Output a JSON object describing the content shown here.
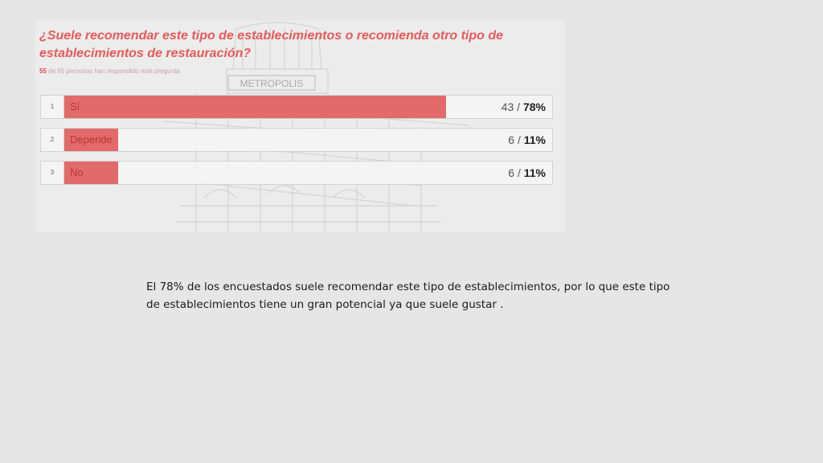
{
  "survey": {
    "question": "¿Suele recomendar este tipo de establecimientos o recomienda otro tipo de establecimientos de restauración?",
    "respondent_count": "55",
    "respondent_text": "de 55 personas han respondido esta pregunta",
    "sign_text": "METROPOLIS"
  },
  "chart_data": {
    "type": "bar",
    "orientation": "horizontal",
    "title": "¿Suele recomendar este tipo de establecimientos o recomienda otro tipo de establecimientos de restauración?",
    "categories": [
      "Sí",
      "Depende",
      "No"
    ],
    "indices": [
      "1",
      "2",
      "3"
    ],
    "counts": [
      43,
      6,
      6
    ],
    "percentages": [
      78,
      11,
      11
    ],
    "count_labels": [
      "43 / ",
      "6 / ",
      "6 / "
    ],
    "percent_labels": [
      "78%",
      "11%",
      "11%"
    ],
    "xlim": [
      0,
      100
    ],
    "bar_color": "#e26a6a"
  },
  "caption": "El 78% de los encuestados suele recomendar este tipo de establecimientos, por lo que este tipo de establecimientos tiene un gran potencial ya que suele gustar ."
}
